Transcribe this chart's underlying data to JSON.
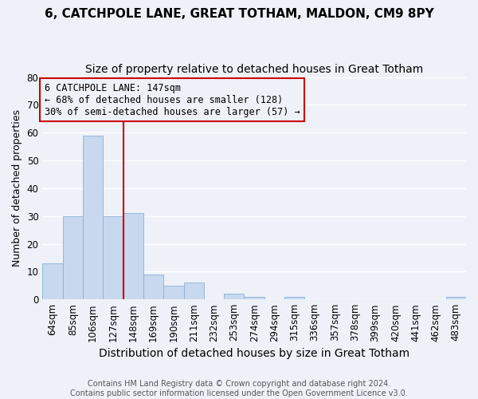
{
  "title": "6, CATCHPOLE LANE, GREAT TOTHAM, MALDON, CM9 8PY",
  "subtitle": "Size of property relative to detached houses in Great Totham",
  "xlabel": "Distribution of detached houses by size in Great Totham",
  "ylabel": "Number of detached properties",
  "categories": [
    "64sqm",
    "85sqm",
    "106sqm",
    "127sqm",
    "148sqm",
    "169sqm",
    "190sqm",
    "211sqm",
    "232sqm",
    "253sqm",
    "274sqm",
    "294sqm",
    "315sqm",
    "336sqm",
    "357sqm",
    "378sqm",
    "399sqm",
    "420sqm",
    "441sqm",
    "462sqm",
    "483sqm"
  ],
  "values": [
    13,
    30,
    59,
    30,
    31,
    9,
    5,
    6,
    0,
    2,
    1,
    0,
    1,
    0,
    0,
    0,
    0,
    0,
    0,
    0,
    1
  ],
  "bar_color": "#c8d8ee",
  "bar_edge_color": "#8ab0d8",
  "property_line_index": 4,
  "property_line_color": "#cc0000",
  "annotation_line1": "6 CATCHPOLE LANE: 147sqm",
  "annotation_line2": "← 68% of detached houses are smaller (128)",
  "annotation_line3": "30% of semi-detached houses are larger (57) →",
  "annotation_box_color": "#cc0000",
  "ylim": [
    0,
    80
  ],
  "yticks": [
    0,
    10,
    20,
    30,
    40,
    50,
    60,
    70,
    80
  ],
  "footer": "Contains HM Land Registry data © Crown copyright and database right 2024.\nContains public sector information licensed under the Open Government Licence v3.0.",
  "bg_color": "#eef2f8",
  "grid_color": "#d8e2f0",
  "title_fontsize": 11,
  "subtitle_fontsize": 10,
  "tick_fontsize": 8.5,
  "ylabel_fontsize": 9,
  "xlabel_fontsize": 10
}
